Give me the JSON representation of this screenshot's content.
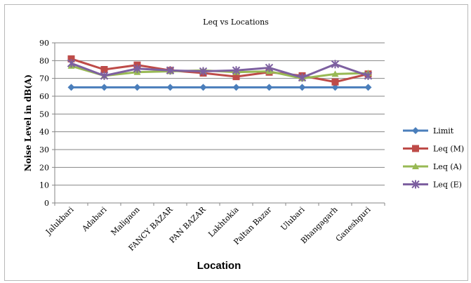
{
  "chart_data": {
    "type": "line",
    "title": "Leq vs Locations",
    "xlabel": "Location",
    "ylabel": "Noise Level in dB(A)",
    "categories": [
      "Jalukbari",
      "Adabari",
      "Maligaon",
      "FANCY BAZAR",
      "PAN BAZAR",
      "Lakhtokia",
      "Paltan Bazar",
      "Ulubari",
      "Bhangagarh",
      "Ganeshguri"
    ],
    "ylim": [
      0,
      90
    ],
    "yticks": [
      "0",
      "10",
      "20",
      "30",
      "40",
      "50",
      "60",
      "70",
      "80",
      "90"
    ],
    "grid": true,
    "legend_position": "right",
    "series": [
      {
        "name": "Limit",
        "color": "#4a7ebb",
        "marker": "diamond",
        "values": [
          65,
          65,
          65,
          65,
          65,
          65,
          65,
          65,
          65,
          65
        ]
      },
      {
        "name": "Leq (M)",
        "color": "#be4b48",
        "marker": "square",
        "values": [
          81,
          75,
          77.5,
          74.5,
          73,
          71,
          73.5,
          71.5,
          68,
          72.5
        ]
      },
      {
        "name": "Leq (A)",
        "color": "#98b954",
        "marker": "triangle",
        "values": [
          77,
          71.5,
          73.5,
          74,
          74.5,
          73.5,
          74,
          70,
          72.5,
          73
        ]
      },
      {
        "name": "Leq (E)",
        "color": "#7d60a0",
        "marker": "x",
        "values": [
          78.5,
          71.5,
          75.5,
          74.5,
          74,
          74.5,
          76,
          70.5,
          78,
          71.5
        ]
      }
    ]
  }
}
